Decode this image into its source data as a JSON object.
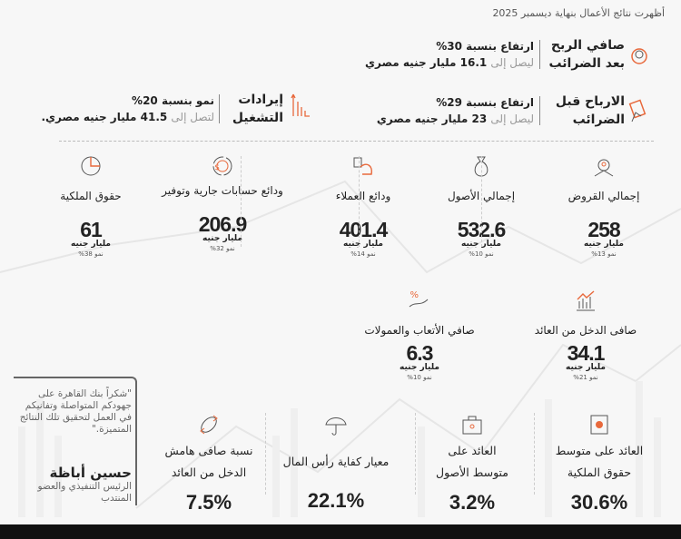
{
  "title": "أظهرت نتائج الأعمال بنهاية ديسمبر 2025",
  "highlights": [
    {
      "label_1": "صافي الربح",
      "label_2": "بعد الضرائب",
      "line1": "ارتفاع بنسبة 30%",
      "lead": "ليصل إلى",
      "line2": "16.1 مليار جنيه مصري",
      "icon": "money-bag-icon"
    },
    {
      "label_1": "الارباح قبل",
      "label_2": "الضرائب",
      "line1": "ارتفاع بنسبة 29%",
      "lead": "ليصل إلى",
      "line2": "23 مليار جنيه مصري",
      "icon": "hand-money-icon"
    },
    {
      "label_1": "إيرادات",
      "label_2": "التشغيل",
      "line1": "نمو بنسبة 20%",
      "lead": "لتصل إلى",
      "line2": "41.5 مليار جنيه مصري.",
      "icon": "bar-chart-icon"
    }
  ],
  "metrics": [
    {
      "label": "إجمالي القروض",
      "value": "258",
      "unit": "مليار جنيه",
      "growth": "نمو 13%"
    },
    {
      "label": "إجمالي الأصول",
      "value": "532.6",
      "unit": "مليار جنيه",
      "growth": "نمو 10%"
    },
    {
      "label": "ودائع العملاء",
      "value": "401.4",
      "unit": "مليار جنيه",
      "growth": "نمو 14%"
    },
    {
      "label": "ودائع حسابات جارية وتوفير",
      "value": "206.9",
      "unit": "مليار جنيه",
      "growth": "نمو 32%"
    },
    {
      "label": "حقوق الملكية",
      "value": "61",
      "unit": "مليار جنيه",
      "growth": "نمو 38%"
    },
    {
      "label": "صافى الدخل من العائد",
      "value": "34.1",
      "unit": "مليار جنيه",
      "growth": "نمو 21%"
    },
    {
      "label": "صافي الأتعاب والعمولات",
      "value": "6.3",
      "unit": "مليار جنيه",
      "growth": "نمو 10%"
    }
  ],
  "ratios": [
    {
      "label_1": "العائد على متوسط",
      "label_2": "حقوق الملكية",
      "value": "30.6%"
    },
    {
      "label_1": "العائد على",
      "label_2": "متوسط الأصول",
      "value": "3.2%"
    },
    {
      "label_1": "معيار كفاية رأس المال",
      "label_2": "",
      "value": "22.1%"
    },
    {
      "label_1": "نسبة صافى هامش",
      "label_2": "الدخل من العائد",
      "value": "7.5%"
    }
  ],
  "quote": {
    "text": "\"شكراً بنك القاهرة على جهودكم المتواصلة وتفانيكم في العمل لتحقيق تلك النتائج المتميزة.\"",
    "name": "حسين أباظة",
    "role": "الرئيس التنفيذي والعضو المنتدب"
  },
  "colors": {
    "accent": "#e8693c",
    "text": "#222222"
  }
}
